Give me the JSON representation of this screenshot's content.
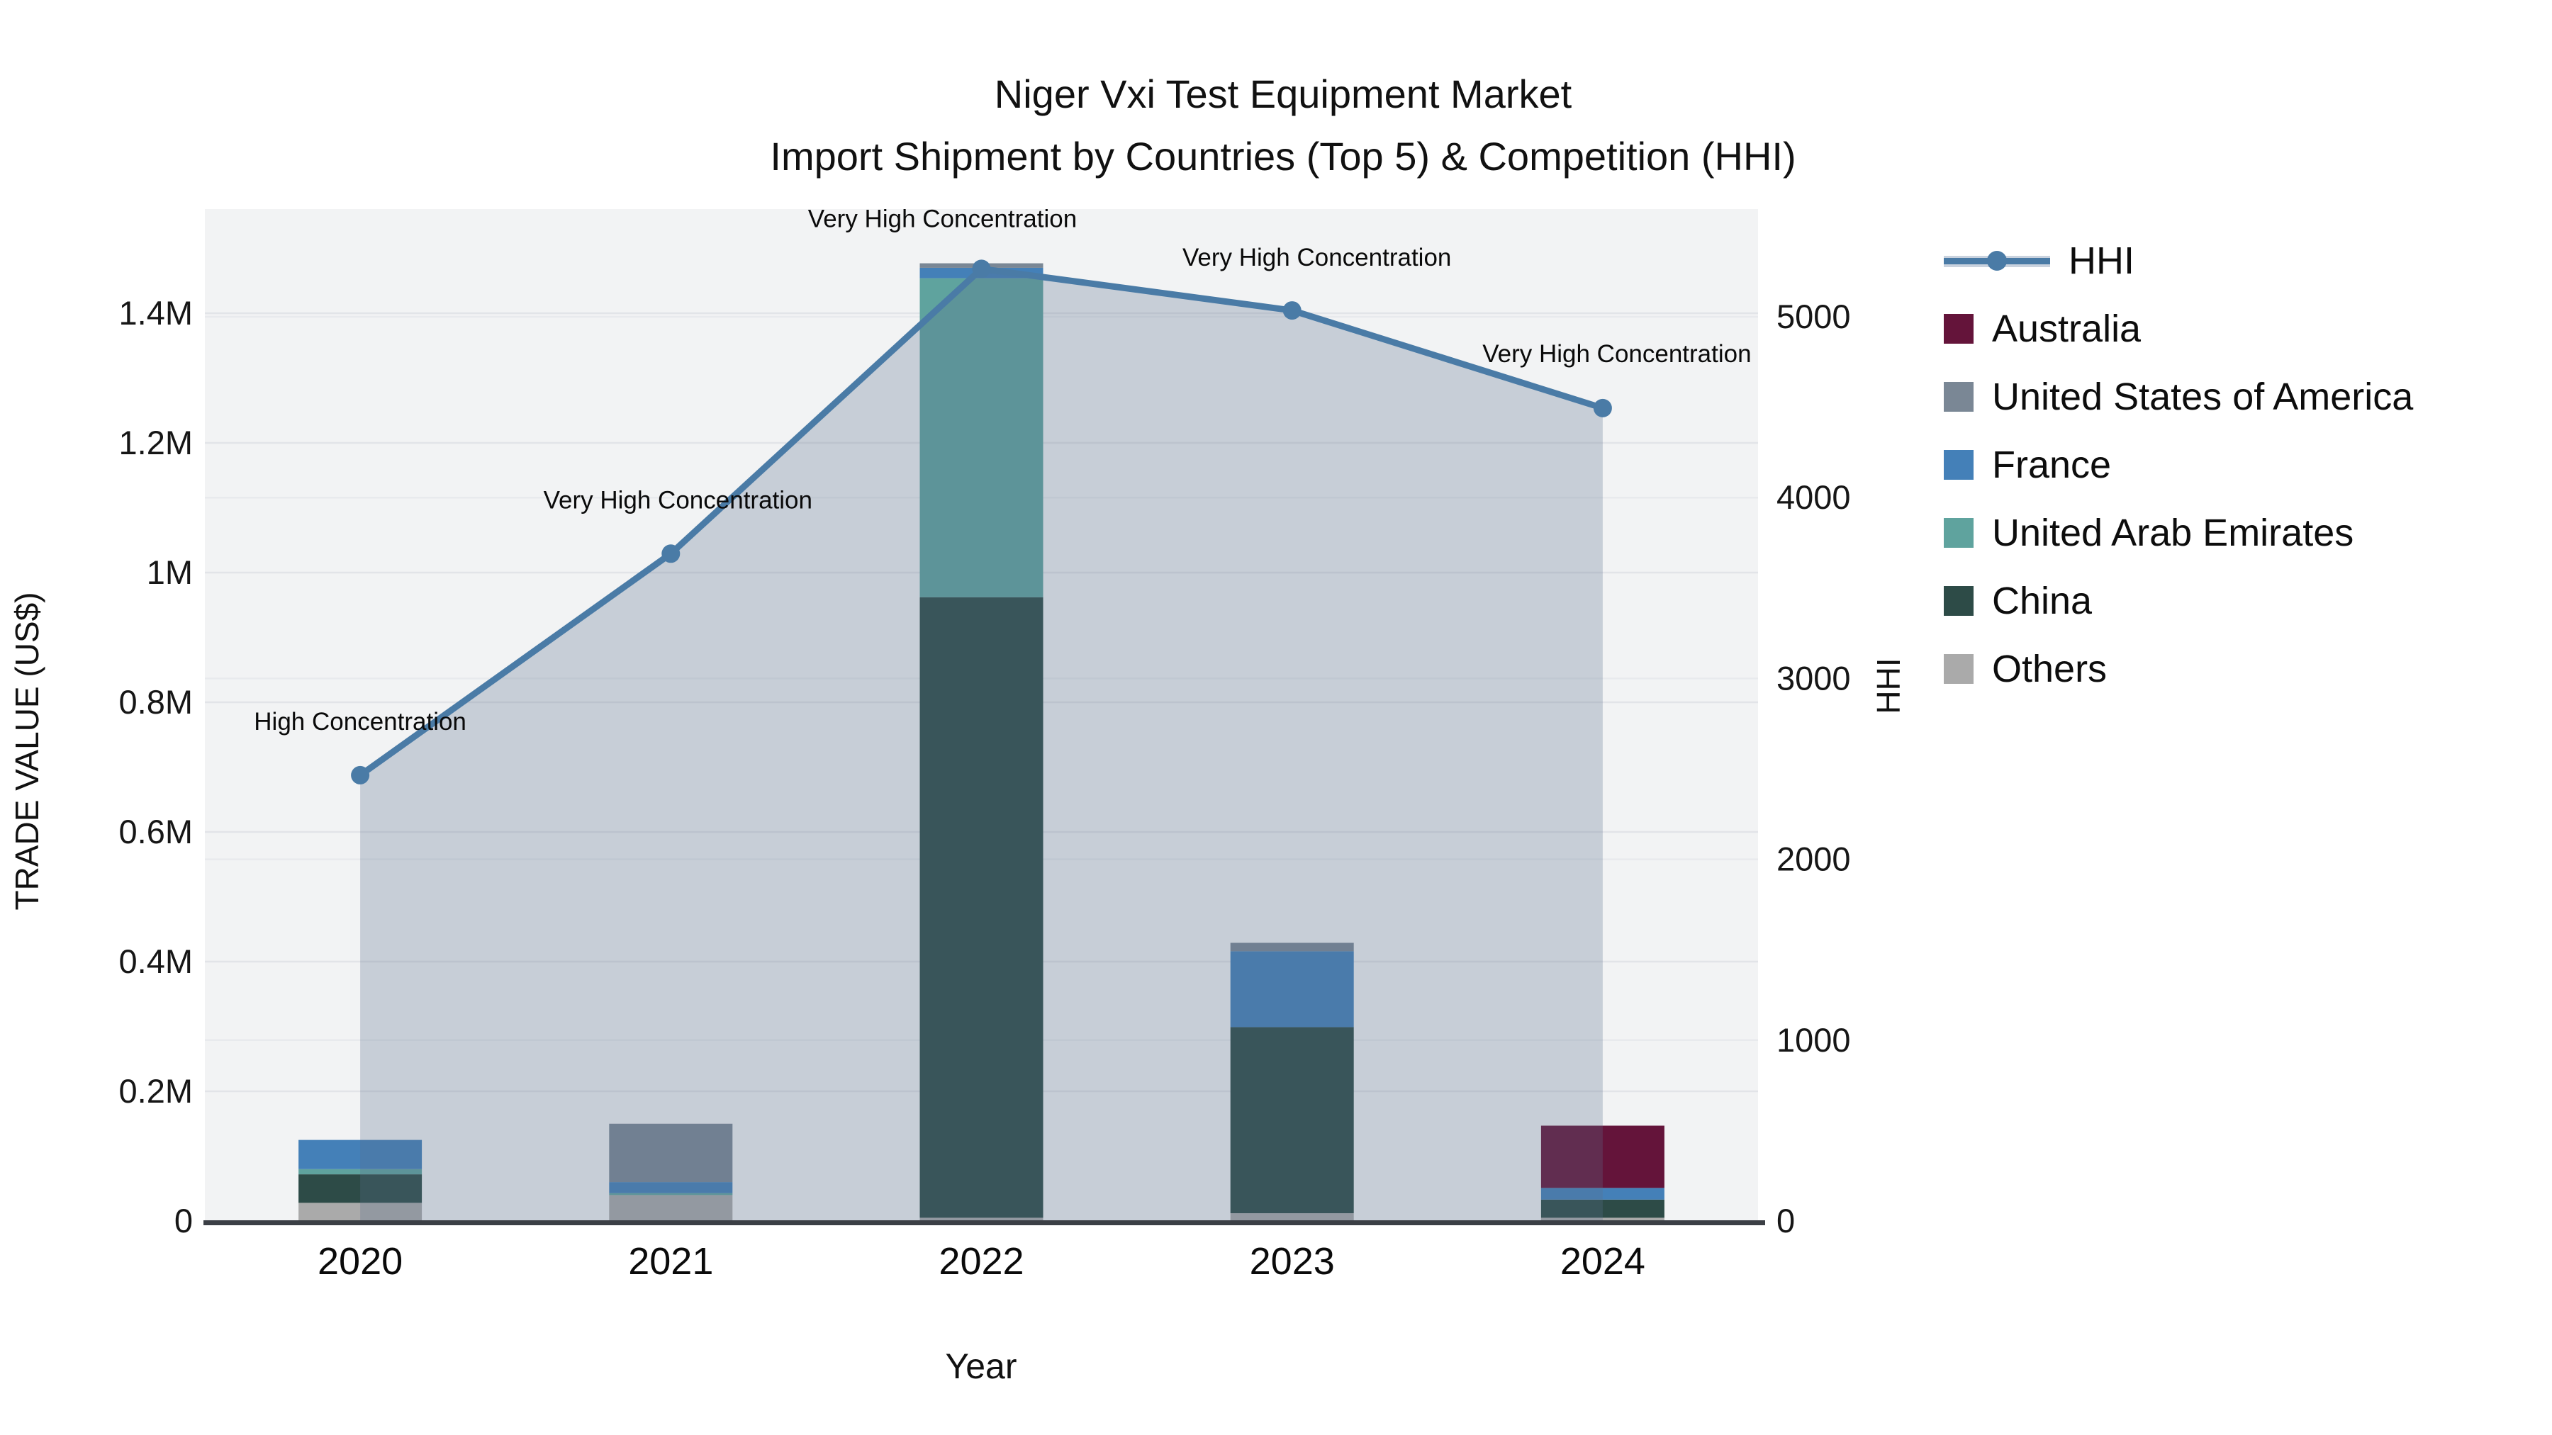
{
  "title": {
    "line1": "Niger Vxi Test Equipment Market",
    "line2": "Import Shipment by Countries (Top 5) & Competition (HHI)"
  },
  "y_left_axis": {
    "title": "TRADE VALUE (US$)",
    "ticks": [
      {
        "label": "0",
        "value": 0
      },
      {
        "label": "0.2M",
        "value": 200000
      },
      {
        "label": "0.4M",
        "value": 400000
      },
      {
        "label": "0.6M",
        "value": 600000
      },
      {
        "label": "0.8M",
        "value": 800000
      },
      {
        "label": "1M",
        "value": 1000000
      },
      {
        "label": "1.2M",
        "value": 1200000
      },
      {
        "label": "1.4M",
        "value": 1400000
      }
    ]
  },
  "y_right_axis": {
    "title": "HHI",
    "ticks": [
      {
        "label": "0",
        "value": 0
      },
      {
        "label": "1000",
        "value": 1000
      },
      {
        "label": "2000",
        "value": 2000
      },
      {
        "label": "3000",
        "value": 3000
      },
      {
        "label": "4000",
        "value": 4000
      },
      {
        "label": "5000",
        "value": 5000
      }
    ]
  },
  "x_axis": {
    "title": "Year"
  },
  "legend": [
    {
      "name": "HHI",
      "type": "line",
      "color": "#4a7ba6"
    },
    {
      "name": "Australia",
      "type": "swatch",
      "color": "#64143a"
    },
    {
      "name": "United States of America",
      "type": "swatch",
      "color": "#7a8795"
    },
    {
      "name": "France",
      "type": "swatch",
      "color": "#4480b8"
    },
    {
      "name": "United Arab Emirates",
      "type": "swatch",
      "color": "#5fa39e"
    },
    {
      "name": "China",
      "type": "swatch",
      "color": "#2d4b47"
    },
    {
      "name": "Others",
      "type": "swatch",
      "color": "#aaaaaa"
    }
  ],
  "chart_data": {
    "type": "combo: stacked-bar (left axis) + line-with-area (right axis)",
    "categories": [
      "2020",
      "2021",
      "2022",
      "2023",
      "2024"
    ],
    "bar_value_unit": "US$",
    "series": [
      {
        "name": "Australia",
        "color": "#64143a",
        "values": [
          0,
          0,
          0,
          0,
          96000
        ]
      },
      {
        "name": "United States of America",
        "color": "#7a8795",
        "values": [
          0,
          90000,
          7000,
          13000,
          0
        ]
      },
      {
        "name": "France",
        "color": "#4480b8",
        "values": [
          45000,
          17000,
          16000,
          117000,
          18000
        ]
      },
      {
        "name": "United Arab Emirates",
        "color": "#5fa39e",
        "values": [
          8000,
          3000,
          492000,
          0,
          0
        ]
      },
      {
        "name": "China",
        "color": "#2d4b47",
        "values": [
          44000,
          0,
          957000,
          287000,
          28000
        ]
      },
      {
        "name": "Others",
        "color": "#aaaaaa",
        "values": [
          28000,
          40000,
          5000,
          12000,
          5000
        ]
      }
    ],
    "stack_order_bottom_to_top": [
      "Others",
      "China",
      "United Arab Emirates",
      "France",
      "United States of America",
      "Australia"
    ],
    "bar_totals": [
      125000,
      150000,
      1477000,
      429000,
      147000
    ],
    "line": {
      "name": "HHI",
      "color": "#4a7ba6",
      "area_fill": "rgba(88,110,140,0.28)",
      "values": [
        2465,
        3690,
        5265,
        5035,
        4495
      ]
    },
    "annotations": [
      {
        "text": "High Concentration",
        "x_offset": 0,
        "y_offset": -44
      },
      {
        "text": "Very High Concentration",
        "x_offset": 10,
        "y_offset": -44
      },
      {
        "text": "Very High Concentration",
        "x_offset": -55,
        "y_offset": -39
      },
      {
        "text": "Very High Concentration",
        "x_offset": 35,
        "y_offset": -43
      },
      {
        "text": "Very High Concentration",
        "x_offset": 20,
        "y_offset": -45
      }
    ],
    "title": "Niger Vxi Test Equipment Market — Import Shipment by Countries (Top 5) & Competition (HHI)",
    "xlabel": "Year",
    "ylabel_left": "TRADE VALUE (US$)",
    "ylabel_right": "HHI",
    "y_left_range": [
      0,
      1560000
    ],
    "y_right_range": [
      0,
      5595
    ],
    "grid": true,
    "legend_position": "right"
  }
}
